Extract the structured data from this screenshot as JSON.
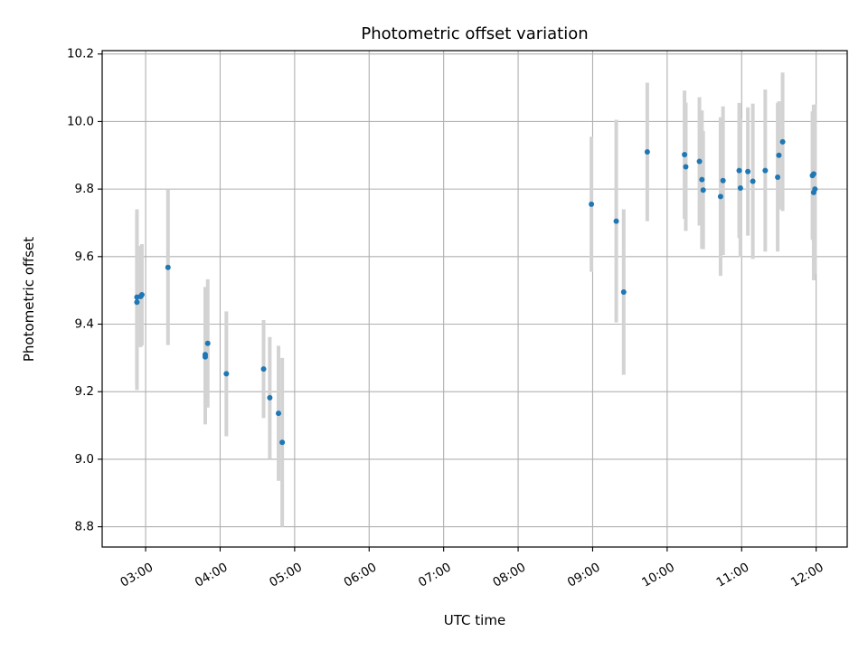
{
  "chart_data": {
    "type": "scatter",
    "title": "Photometric offset variation",
    "xlabel": "UTC time",
    "ylabel": "Photometric offset",
    "xlim": [
      "02:25",
      "12:25"
    ],
    "ylim": [
      8.74,
      10.21
    ],
    "x_ticks": [
      "03:00",
      "04:00",
      "05:00",
      "06:00",
      "07:00",
      "08:00",
      "09:00",
      "10:00",
      "11:00",
      "12:00"
    ],
    "y_ticks": [
      8.8,
      9.0,
      9.2,
      9.4,
      9.6,
      9.8,
      10.0,
      10.2
    ],
    "y_tick_labels": [
      "8.8",
      "9.0",
      "9.2",
      "9.4",
      "9.6",
      "9.8",
      "10.0",
      "10.2"
    ],
    "grid": true,
    "point_color": "#1f77b4",
    "errorbar_color": "#d3d3d3",
    "points": [
      {
        "t": "02:53",
        "y": 9.48,
        "err": 0.26
      },
      {
        "t": "02:53",
        "y": 9.465,
        "err": 0.26
      },
      {
        "t": "02:56",
        "y": 9.482,
        "err": 0.15
      },
      {
        "t": "02:57",
        "y": 9.487,
        "err": 0.15
      },
      {
        "t": "03:18",
        "y": 9.568,
        "err": 0.23
      },
      {
        "t": "03:48",
        "y": 9.31,
        "err": 0.2
      },
      {
        "t": "03:48",
        "y": 9.303,
        "err": 0.2
      },
      {
        "t": "03:50",
        "y": 9.343,
        "err": 0.19
      },
      {
        "t": "04:05",
        "y": 9.253,
        "err": 0.185
      },
      {
        "t": "04:35",
        "y": 9.267,
        "err": 0.145
      },
      {
        "t": "04:40",
        "y": 9.182,
        "err": 0.18
      },
      {
        "t": "04:47",
        "y": 9.136,
        "err": 0.2
      },
      {
        "t": "04:50",
        "y": 9.05,
        "err": 0.25
      },
      {
        "t": "08:59",
        "y": 9.755,
        "err": 0.2
      },
      {
        "t": "09:19",
        "y": 9.705,
        "err": 0.3
      },
      {
        "t": "09:25",
        "y": 9.495,
        "err": 0.245
      },
      {
        "t": "09:44",
        "y": 9.91,
        "err": 0.205
      },
      {
        "t": "10:14",
        "y": 9.902,
        "err": 0.19
      },
      {
        "t": "10:15",
        "y": 9.866,
        "err": 0.19
      },
      {
        "t": "10:26",
        "y": 9.882,
        "err": 0.19
      },
      {
        "t": "10:28",
        "y": 9.828,
        "err": 0.205
      },
      {
        "t": "10:29",
        "y": 9.797,
        "err": 0.175
      },
      {
        "t": "10:43",
        "y": 9.778,
        "err": 0.235
      },
      {
        "t": "10:45",
        "y": 9.825,
        "err": 0.22
      },
      {
        "t": "10:58",
        "y": 9.855,
        "err": 0.2
      },
      {
        "t": "10:59",
        "y": 9.803,
        "err": 0.205
      },
      {
        "t": "11:05",
        "y": 9.852,
        "err": 0.19
      },
      {
        "t": "11:09",
        "y": 9.823,
        "err": 0.23
      },
      {
        "t": "11:19",
        "y": 9.855,
        "err": 0.24
      },
      {
        "t": "11:29",
        "y": 9.835,
        "err": 0.22
      },
      {
        "t": "11:30",
        "y": 9.9,
        "err": 0.16
      },
      {
        "t": "11:33",
        "y": 9.94,
        "err": 0.205
      },
      {
        "t": "11:57",
        "y": 9.84,
        "err": 0.19
      },
      {
        "t": "11:58",
        "y": 9.845,
        "err": 0.2
      },
      {
        "t": "11:58",
        "y": 9.79,
        "err": 0.26
      },
      {
        "t": "11:59",
        "y": 9.8,
        "err": 0.25
      }
    ]
  }
}
